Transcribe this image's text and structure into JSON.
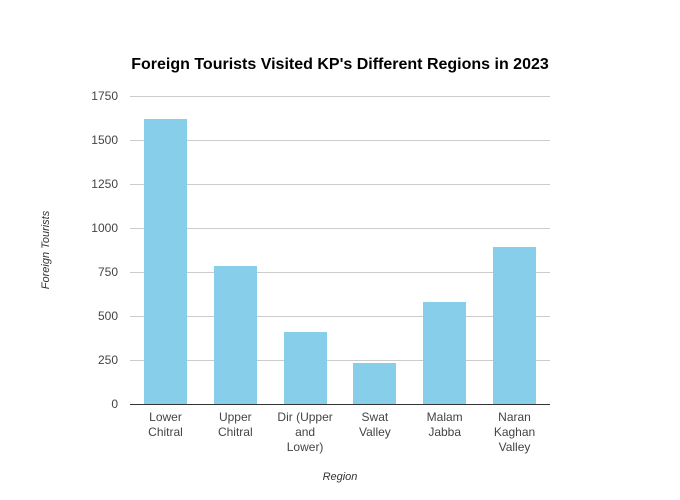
{
  "chart_data": {
    "type": "bar",
    "title": "Foreign Tourists Visited KP's Different Regions in 2023",
    "xlabel": "Region",
    "ylabel": "Foreign Tourists",
    "categories": [
      "Lower Chitral",
      "Upper Chitral",
      "Dir (Upper and Lower)",
      "Swat Valley",
      "Malam Jabba",
      "Naran Kaghan Valley"
    ],
    "values": [
      1620,
      785,
      410,
      235,
      580,
      890
    ],
    "ylim": [
      0,
      1750
    ],
    "yticks": [
      "0",
      "250",
      "500",
      "750",
      "1000",
      "1250",
      "1500",
      "1750"
    ],
    "grid": true,
    "bar_color": "#87ceeb"
  },
  "xlabels": [
    {
      "lines": [
        "Lower",
        "Chitral"
      ]
    },
    {
      "lines": [
        "Upper",
        "Chitral"
      ]
    },
    {
      "lines": [
        "Dir (Upper",
        "and",
        "Lower)"
      ]
    },
    {
      "lines": [
        "Swat",
        "Valley"
      ]
    },
    {
      "lines": [
        "Malam",
        "Jabba"
      ]
    },
    {
      "lines": [
        "Naran",
        "Kaghan",
        "Valley"
      ]
    }
  ]
}
